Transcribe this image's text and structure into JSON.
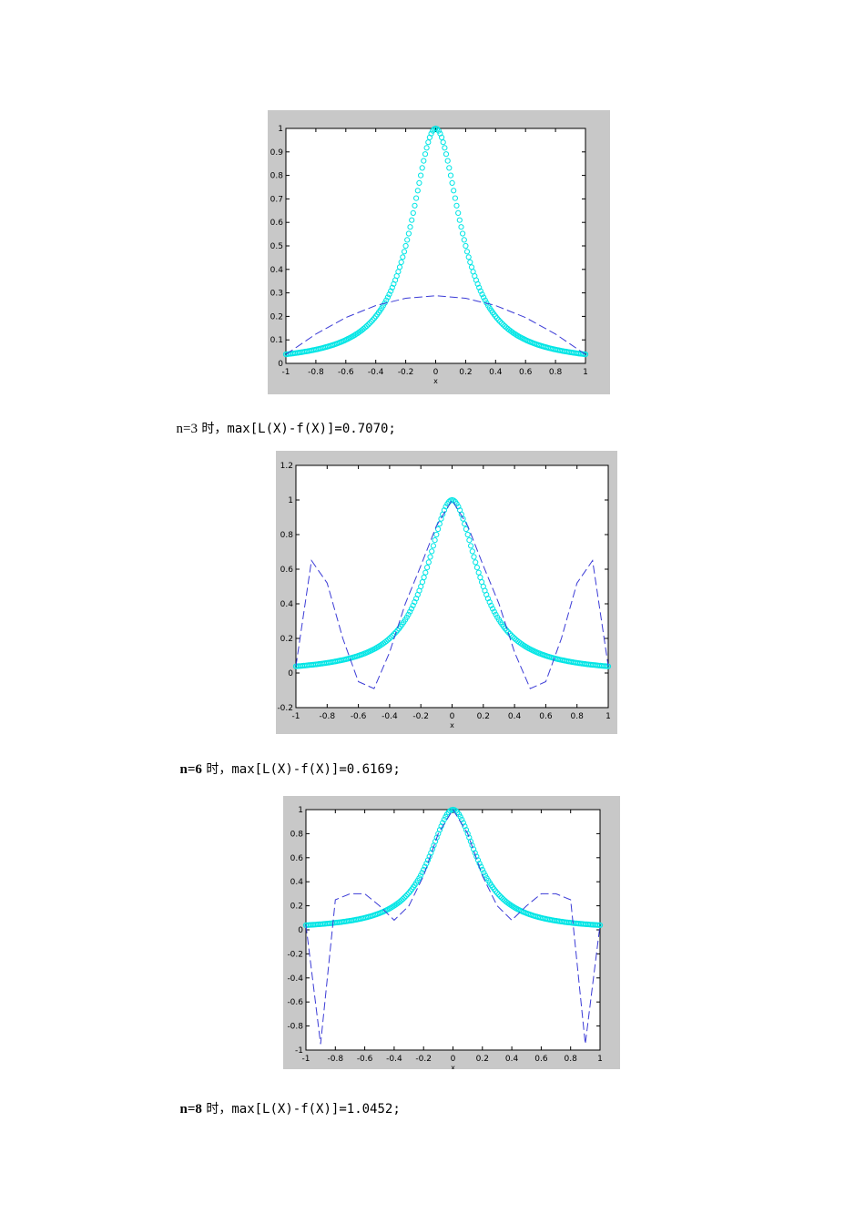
{
  "chart_data": [
    {
      "type": "line",
      "n": 3,
      "xlabel": "x",
      "xlim": [
        -1,
        1
      ],
      "ylim": [
        0,
        1
      ],
      "xticks": [
        "-1",
        "-0.8",
        "-0.6",
        "-0.4",
        "-0.2",
        "0",
        "0.2",
        "0.4",
        "0.6",
        "0.8",
        "1"
      ],
      "yticks": [
        "0",
        "0.1",
        "0.2",
        "0.3",
        "0.4",
        "0.5",
        "0.6",
        "0.7",
        "0.8",
        "0.9",
        "1"
      ],
      "series": [
        {
          "style": "circle-markers",
          "color": "#00e5e5",
          "function": "1/(1+25x^2)"
        },
        {
          "style": "dashed",
          "color": "#3b3bd6",
          "x": [
            -1,
            -0.8,
            -0.6,
            -0.4,
            -0.2,
            0,
            0.2,
            0.4,
            0.6,
            0.8,
            1
          ],
          "y": [
            0.038,
            0.125,
            0.195,
            0.246,
            0.277,
            0.288,
            0.277,
            0.246,
            0.195,
            0.125,
            0.038
          ]
        }
      ]
    },
    {
      "type": "line",
      "n": 6,
      "xlabel": "x",
      "xlim": [
        -1,
        1
      ],
      "ylim": [
        -0.2,
        1.2
      ],
      "xticks": [
        "-1",
        "-0.8",
        "-0.6",
        "-0.4",
        "-0.2",
        "0",
        "0.2",
        "0.4",
        "0.6",
        "0.8",
        "1"
      ],
      "yticks": [
        "-0.2",
        "0",
        "0.2",
        "0.4",
        "0.6",
        "0.8",
        "1",
        "1.2"
      ],
      "series": [
        {
          "style": "circle-markers",
          "color": "#00e5e5",
          "function": "1/(1+25x^2)"
        },
        {
          "style": "dashed",
          "color": "#3b3bd6",
          "x": [
            -1,
            -0.9,
            -0.8,
            -0.7,
            -0.6,
            -0.5,
            -0.4,
            -0.3,
            -0.2,
            -0.1,
            0,
            0.1,
            0.2,
            0.3,
            0.4,
            0.5,
            0.6,
            0.7,
            0.8,
            0.9,
            1
          ],
          "y": [
            0.04,
            0.65,
            0.52,
            0.2,
            -0.05,
            -0.09,
            0.12,
            0.4,
            0.62,
            0.85,
            1.0,
            0.85,
            0.62,
            0.4,
            0.12,
            -0.09,
            -0.05,
            0.2,
            0.52,
            0.65,
            0.04
          ]
        }
      ]
    },
    {
      "type": "line",
      "n": 8,
      "xlabel": "x",
      "xlim": [
        -1,
        1
      ],
      "ylim": [
        -1,
        1
      ],
      "xticks": [
        "-1",
        "-0.8",
        "-0.6",
        "-0.4",
        "-0.2",
        "0",
        "0.2",
        "0.4",
        "0.6",
        "0.8",
        "1"
      ],
      "yticks": [
        "-1",
        "-0.8",
        "-0.6",
        "-0.4",
        "-0.2",
        "0",
        "0.2",
        "0.4",
        "0.6",
        "0.8",
        "1"
      ],
      "series": [
        {
          "style": "circle-markers",
          "color": "#00e5e5",
          "function": "1/(1+25x^2)"
        },
        {
          "style": "dashed",
          "color": "#3b3bd6",
          "x": [
            -1,
            -0.9,
            -0.8,
            -0.7,
            -0.6,
            -0.5,
            -0.4,
            -0.3,
            -0.2,
            -0.1,
            0,
            0.1,
            0.2,
            0.3,
            0.4,
            0.5,
            0.6,
            0.7,
            0.8,
            0.9,
            1
          ],
          "y": [
            0.04,
            -0.95,
            0.25,
            0.3,
            0.3,
            0.2,
            0.08,
            0.2,
            0.45,
            0.8,
            1.0,
            0.8,
            0.45,
            0.2,
            0.08,
            0.2,
            0.3,
            0.3,
            0.25,
            -0.95,
            0.04
          ]
        }
      ]
    }
  ],
  "captions": [
    {
      "n_label": "n=3",
      "shi": "时，",
      "expr": "max[L(X)-f(X)]=0.7070;"
    },
    {
      "n_label": "n=6",
      "shi": "时，",
      "expr": "max[L(X)-f(X)]=0.6169;"
    },
    {
      "n_label": "n=8",
      "shi": "时，",
      "expr": "max[L(X)-f(X)]=1.0452;"
    }
  ]
}
